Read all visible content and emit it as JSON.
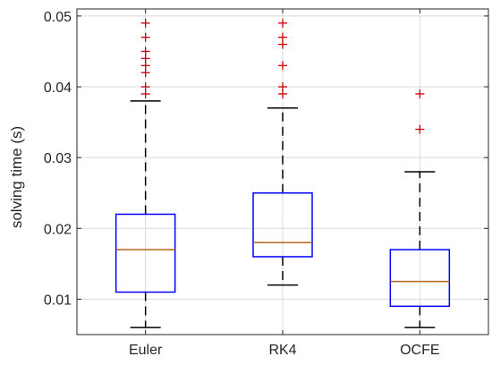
{
  "chart_data": {
    "type": "boxplot",
    "xlabel": "",
    "ylabel": "solving time (s)",
    "ylim": [
      0.005,
      0.051
    ],
    "yticks": [
      0.01,
      0.02,
      0.03,
      0.04,
      0.05
    ],
    "ytick_labels": [
      "0.01",
      "0.02",
      "0.03",
      "0.04",
      "0.05"
    ],
    "grid": true,
    "categories": [
      "Euler",
      "RK4",
      "OCFE"
    ],
    "boxes": [
      {
        "category": "Euler",
        "whisker_low": 0.006,
        "q1": 0.011,
        "median": 0.017,
        "q3": 0.022,
        "whisker_high": 0.038,
        "outliers": [
          0.039,
          0.04,
          0.042,
          0.043,
          0.044,
          0.045,
          0.047,
          0.049
        ]
      },
      {
        "category": "RK4",
        "whisker_low": 0.012,
        "q1": 0.016,
        "median": 0.018,
        "q3": 0.025,
        "whisker_high": 0.037,
        "outliers": [
          0.039,
          0.04,
          0.043,
          0.046,
          0.047,
          0.049
        ]
      },
      {
        "category": "OCFE",
        "whisker_low": 0.006,
        "q1": 0.009,
        "median": 0.0125,
        "q3": 0.017,
        "whisker_high": 0.028,
        "outliers": [
          0.034,
          0.039
        ]
      }
    ],
    "colors": {
      "box": "#0000ff",
      "median": "#b5651d",
      "whisker": "#000000",
      "outlier": "#cc0000",
      "grid": "#d9d9d9",
      "axis": "#262626"
    }
  }
}
